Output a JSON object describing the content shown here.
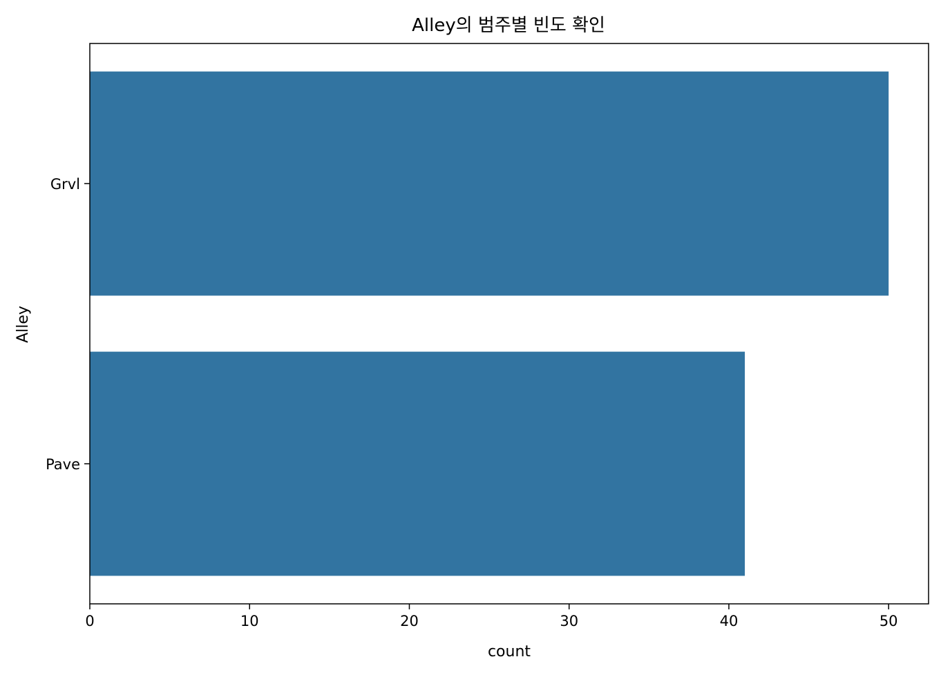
{
  "chart_data": {
    "type": "bar",
    "orientation": "horizontal",
    "title": "Alley의 범주별 빈도 확인",
    "xlabel": "count",
    "ylabel": "Alley",
    "categories": [
      "Grvl",
      "Pave"
    ],
    "values": [
      50,
      41
    ],
    "xlim": [
      0,
      52.5
    ],
    "xticks": [
      0,
      10,
      20,
      30,
      40,
      50
    ],
    "grid": false,
    "legend": "none",
    "bar_color": "#3274a1"
  }
}
